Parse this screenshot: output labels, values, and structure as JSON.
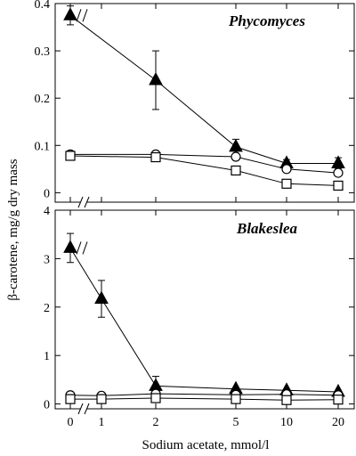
{
  "figure": {
    "ylabel": "β-carotene, mg/g dry mass",
    "xlabel": "Sodium acetate, mmol/l"
  },
  "chart_data": [
    {
      "type": "line",
      "title": "Phycomyces",
      "xlabel": "Sodium acetate, mmol/l",
      "ylabel": "β-carotene, mg/g dry mass",
      "x_scale": "log (with axis break between 0 and 1)",
      "x_ticks": [
        "0",
        "1",
        "2",
        "5",
        "10",
        "20"
      ],
      "y_ticks": [
        "0",
        "0.1",
        "0.2",
        "0.3",
        "0.4"
      ],
      "ylim": [
        -0.02,
        0.4
      ],
      "grid": false,
      "series": [
        {
          "marker": "filled-triangle",
          "x": [
            0,
            2,
            5,
            10,
            20
          ],
          "y": [
            0.375,
            0.238,
            0.097,
            0.062,
            0.062
          ],
          "error": [
            0.02,
            0.062,
            0.016,
            0.008,
            0.012
          ]
        },
        {
          "marker": "open-circle",
          "x": [
            0,
            2,
            5,
            10,
            20
          ],
          "y": [
            0.081,
            0.081,
            0.076,
            0.05,
            0.042
          ],
          "error": [
            0.005,
            0,
            0,
            0,
            0
          ]
        },
        {
          "marker": "open-square",
          "x": [
            0,
            2,
            5,
            10,
            20
          ],
          "y": [
            0.078,
            0.075,
            0.047,
            0.019,
            0.015
          ],
          "error": [
            0,
            0,
            0,
            0,
            0
          ]
        }
      ]
    },
    {
      "type": "line",
      "title": "Blakeslea",
      "xlabel": "Sodium acetate, mmol/l",
      "ylabel": "β-carotene, mg/g dry mass",
      "x_scale": "log (with axis break between 0 and 1)",
      "x_ticks": [
        "0",
        "1",
        "2",
        "5",
        "10",
        "20"
      ],
      "y_ticks": [
        "0",
        "1",
        "2",
        "3",
        "4"
      ],
      "ylim": [
        -0.1,
        4
      ],
      "grid": false,
      "series": [
        {
          "marker": "filled-triangle",
          "x": [
            0,
            1,
            2,
            5,
            10,
            20
          ],
          "y": [
            3.22,
            2.17,
            0.37,
            0.31,
            0.28,
            0.25
          ],
          "error": [
            0.3,
            0.38,
            0.2,
            0,
            0,
            0
          ]
        },
        {
          "marker": "open-circle",
          "x": [
            0,
            1,
            2,
            5,
            10,
            20
          ],
          "y": [
            0.18,
            0.17,
            0.21,
            0.19,
            0.2,
            0.18
          ],
          "error": [
            0,
            0,
            0,
            0,
            0,
            0
          ]
        },
        {
          "marker": "open-square",
          "x": [
            0,
            1,
            2,
            5,
            10,
            20
          ],
          "y": [
            0.1,
            0.1,
            0.12,
            0.1,
            0.08,
            0.09
          ],
          "error": [
            0,
            0,
            0,
            0,
            0,
            0
          ]
        }
      ]
    }
  ]
}
